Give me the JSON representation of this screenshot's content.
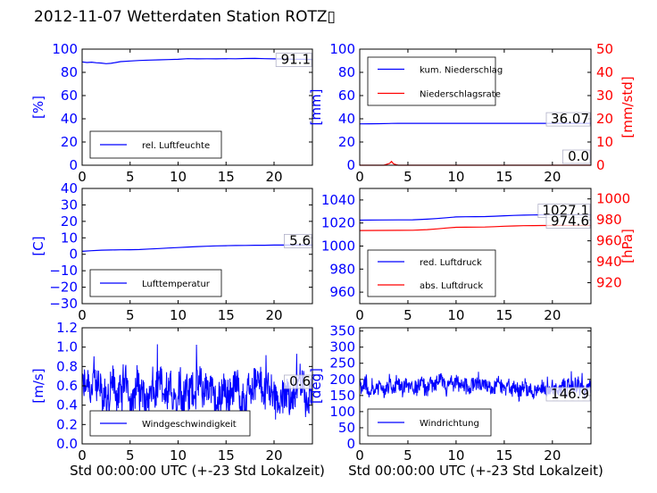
{
  "title": "2012-11-07 Wetterdaten Station ROTZ▯",
  "xlabel": "Std 00:00:00 UTC (+-23 Std Lokalzeit)",
  "colors": {
    "blue": "#0000ff",
    "red": "#ff0000",
    "axis": "#000000"
  },
  "chart_data": [
    {
      "type": "line",
      "panel": "humidity",
      "xlim": [
        0,
        24
      ],
      "ylim": [
        0,
        100
      ],
      "xticks": [
        "0",
        "5",
        "10",
        "15",
        "20"
      ],
      "yticks": [
        "0",
        "20",
        "40",
        "60",
        "80",
        "100"
      ],
      "ylabel": "[%]",
      "series": [
        {
          "name": "rel. Luftfeuchte",
          "color": "#0000ff",
          "x": [
            0,
            0.5,
            1,
            1.5,
            2,
            2.5,
            3,
            3.5,
            4,
            5,
            6,
            7,
            8,
            9,
            10,
            11,
            12,
            13,
            14,
            15,
            16,
            17,
            18,
            19,
            20,
            21,
            22,
            23,
            24
          ],
          "y": [
            89,
            88.5,
            88.8,
            88.2,
            88,
            87.5,
            87.8,
            88.5,
            89.2,
            89.8,
            90.2,
            90.5,
            90.8,
            91,
            91.2,
            91.8,
            91.6,
            91.7,
            91.6,
            91.8,
            91.7,
            91.9,
            92,
            91.8,
            91.6,
            91.5,
            91.3,
            91.2,
            91.1
          ]
        }
      ],
      "annotations": [
        {
          "text": "91.1",
          "value": 91.1
        }
      ],
      "legend": "lower-left"
    },
    {
      "type": "line",
      "panel": "precipitation",
      "xlim": [
        0,
        24
      ],
      "ylim": [
        0,
        100
      ],
      "y2lim": [
        0,
        50
      ],
      "xticks": [
        "0",
        "5",
        "10",
        "15",
        "20"
      ],
      "yticks": [
        "0",
        "20",
        "40",
        "60",
        "80",
        "100"
      ],
      "y2ticks": [
        "0",
        "10",
        "20",
        "30",
        "40",
        "50"
      ],
      "ylabel": "[mm]",
      "y2label": "[mm/std]",
      "series": [
        {
          "name": "kum. Niederschlag",
          "color": "#0000ff",
          "axis": "left",
          "x": [
            0,
            1,
            2,
            3,
            3.3,
            4,
            5,
            10,
            15,
            20,
            24
          ],
          "y": [
            35.6,
            35.7,
            35.8,
            35.9,
            36.0,
            36.05,
            36.07,
            36.07,
            36.07,
            36.07,
            36.07
          ]
        },
        {
          "name": "Niederschlagsrate",
          "color": "#ff0000",
          "axis": "right",
          "x": [
            0,
            2.5,
            3.1,
            3.3,
            3.5,
            3.8,
            4,
            24
          ],
          "y": [
            0,
            0,
            0.8,
            1.6,
            0.6,
            0.2,
            0,
            0
          ]
        }
      ],
      "annotations": [
        {
          "text": "36.07",
          "value": 36.07
        },
        {
          "text": "0.0",
          "value": 0.0
        }
      ],
      "legend": "top-left"
    },
    {
      "type": "line",
      "panel": "temperature",
      "xlim": [
        0,
        24
      ],
      "ylim": [
        -30,
        40
      ],
      "xticks": [
        "0",
        "5",
        "10",
        "15",
        "20"
      ],
      "yticks": [
        "−30",
        "−20",
        "−10",
        "0",
        "10",
        "20",
        "30",
        "40"
      ],
      "ylabel": "[C]",
      "series": [
        {
          "name": "Lufttemperatur",
          "color": "#0000ff",
          "x": [
            0,
            1,
            2,
            3,
            4,
            5,
            6,
            7,
            8,
            9,
            10,
            11,
            12,
            13,
            14,
            15,
            16,
            17,
            18,
            19,
            20,
            21,
            22,
            23,
            24
          ],
          "y": [
            1.8,
            2.2,
            2.5,
            2.6,
            2.7,
            2.8,
            2.9,
            3.2,
            3.5,
            3.8,
            4.1,
            4.4,
            4.7,
            4.9,
            5.1,
            5.2,
            5.3,
            5.4,
            5.5,
            5.5,
            5.6,
            5.6,
            5.6,
            5.6,
            5.6
          ]
        }
      ],
      "annotations": [
        {
          "text": "5.6",
          "value": 5.6
        }
      ],
      "legend": "lower-left"
    },
    {
      "type": "line",
      "panel": "pressure",
      "xlim": [
        0,
        24
      ],
      "ylim": [
        950,
        1050
      ],
      "y2lim": [
        900,
        1010
      ],
      "xticks": [
        "0",
        "5",
        "10",
        "15",
        "20"
      ],
      "yticks": [
        "960",
        "980",
        "1000",
        "1020",
        "1040"
      ],
      "y2ticks": [
        "920",
        "940",
        "960",
        "980",
        "1000"
      ],
      "ylabel": "",
      "y2label": "[hPa]",
      "series": [
        {
          "name": "red. Luftdruck",
          "color": "#0000ff",
          "axis": "left",
          "x": [
            0,
            2,
            4,
            5.5,
            7,
            8,
            9,
            10,
            11,
            12,
            13,
            14,
            15,
            16,
            17,
            18,
            19,
            20,
            21,
            22,
            23,
            24
          ],
          "y": [
            1022.5,
            1022.6,
            1022.7,
            1022.8,
            1023.3,
            1023.9,
            1024.6,
            1025.3,
            1025.4,
            1025.5,
            1025.6,
            1025.9,
            1026.3,
            1026.6,
            1026.8,
            1027,
            1027.1,
            1027.1,
            1027.2,
            1027.1,
            1027.1,
            1027.1
          ]
        },
        {
          "name": "abs. Luftdruck",
          "color": "#ff0000",
          "axis": "right",
          "x": [
            0,
            2,
            4,
            5.5,
            7,
            8,
            9,
            10,
            11,
            12,
            13,
            14,
            15,
            16,
            17,
            18,
            19,
            20,
            21,
            22,
            23,
            24
          ],
          "y": [
            969.8,
            969.9,
            970.0,
            970.1,
            970.7,
            971.4,
            972.2,
            972.9,
            973.0,
            973.1,
            973.2,
            973.5,
            973.9,
            974.2,
            974.4,
            974.5,
            974.6,
            974.6,
            974.7,
            974.6,
            974.6,
            974.6
          ]
        }
      ],
      "annotations": [
        {
          "text": "1027.1",
          "value": 1027.1
        },
        {
          "text": "974.6",
          "value": 974.6
        }
      ],
      "legend": "lower-left"
    },
    {
      "type": "line",
      "panel": "wind-speed",
      "xlim": [
        0,
        24
      ],
      "ylim": [
        0,
        1.2
      ],
      "xticks": [
        "0",
        "5",
        "10",
        "15",
        "20"
      ],
      "yticks": [
        "0.0",
        "0.2",
        "0.4",
        "0.6",
        "0.8",
        "1.0",
        "1.2"
      ],
      "ylabel": "[m/s]",
      "series": [
        {
          "name": "Windgeschwindigkeit",
          "color": "#0000ff",
          "noisy": true,
          "mean": 0.55,
          "spread": 0.18,
          "range": [
            0.1,
            1.1
          ]
        }
      ],
      "annotations": [
        {
          "text": "0.6",
          "value": 0.6
        }
      ],
      "legend": "lower-left"
    },
    {
      "type": "line",
      "panel": "wind-direction",
      "xlim": [
        0,
        24
      ],
      "ylim": [
        0,
        360
      ],
      "xticks": [
        "0",
        "5",
        "10",
        "15",
        "20"
      ],
      "yticks": [
        "0",
        "50",
        "100",
        "150",
        "200",
        "250",
        "300",
        "350"
      ],
      "ylabel": "[deg]",
      "series": [
        {
          "name": "Windrichtung",
          "color": "#0000ff",
          "noisy": true,
          "mean": 175,
          "spread": 22,
          "range": [
            100,
            250
          ]
        }
      ],
      "annotations": [
        {
          "text": "146.9",
          "value": 146.9
        }
      ],
      "legend": "lower-left"
    }
  ]
}
